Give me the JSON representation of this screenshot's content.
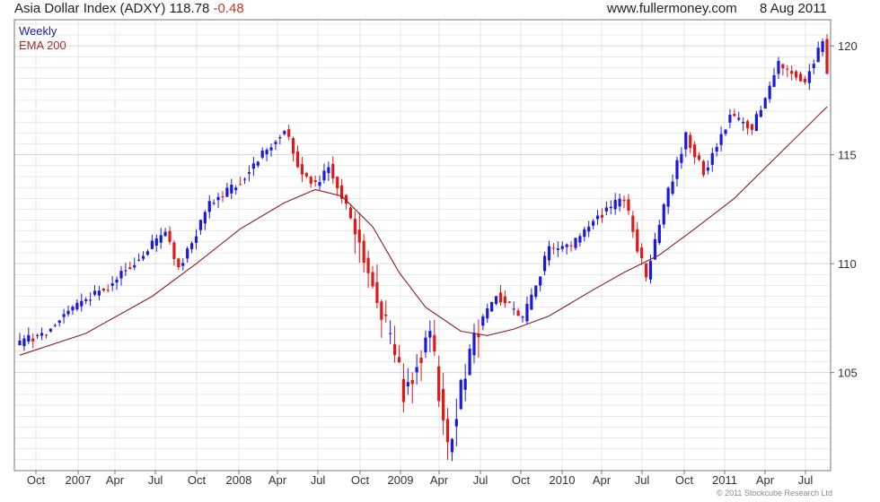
{
  "header": {
    "title_main": "Asia Dollar Index (ADXY) 118.78",
    "title_change": "-0.48",
    "site": "www.fullermoney.com",
    "date": "8 Aug 2011"
  },
  "legend": {
    "weekly": "Weekly",
    "ema": "EMA 200"
  },
  "copyright": "© 2011 Stockcube Research Ltd",
  "colors": {
    "up": "#1a1adc",
    "down": "#e01818",
    "ema": "#8b1f1f",
    "grid": "#d6d6d6",
    "frame": "#777777"
  },
  "chart_data": {
    "type": "candlestick",
    "interval": "weekly",
    "ylim": [
      100.5,
      121.2
    ],
    "y_ticks": [
      105,
      110,
      115,
      120
    ],
    "x_ticks": [
      "Oct",
      "2007",
      "Apr",
      "Jul",
      "Oct",
      "2008",
      "Apr",
      "Jul",
      "Oct",
      "2009",
      "Apr",
      "Jul",
      "Oct",
      "2010",
      "Apr",
      "Jul",
      "Oct",
      "2011",
      "Apr",
      "Jul"
    ],
    "grid": true,
    "legend_position": "top-left",
    "close_path": [
      [
        0,
        106.3
      ],
      [
        6,
        106.9
      ],
      [
        12,
        108.0
      ],
      [
        20,
        109.0
      ],
      [
        28,
        110.5
      ],
      [
        33,
        111.4
      ],
      [
        36,
        109.8
      ],
      [
        43,
        112.7
      ],
      [
        50,
        113.8
      ],
      [
        60,
        116.2
      ],
      [
        64,
        114.1
      ],
      [
        67,
        113.6
      ],
      [
        70,
        114.6
      ],
      [
        77,
        111.0
      ],
      [
        81,
        108.4
      ],
      [
        87,
        104.2
      ],
      [
        93,
        106.8
      ],
      [
        97,
        101.6
      ],
      [
        103,
        106.8
      ],
      [
        108,
        108.6
      ],
      [
        114,
        107.4
      ],
      [
        120,
        110.7
      ],
      [
        125,
        110.8
      ],
      [
        131,
        112.2
      ],
      [
        137,
        113.0
      ],
      [
        142,
        109.3
      ],
      [
        146,
        112.6
      ],
      [
        151,
        115.9
      ],
      [
        155,
        114.2
      ],
      [
        161,
        116.8
      ],
      [
        166,
        116.2
      ],
      [
        172,
        119.1
      ],
      [
        178,
        118.4
      ],
      [
        182,
        120.3
      ],
      [
        183,
        118.78
      ]
    ],
    "series": [
      {
        "name": "Weekly",
        "kind": "candles"
      },
      {
        "name": "EMA 200",
        "kind": "line",
        "values": [
          [
            0,
            105.8
          ],
          [
            15,
            106.8
          ],
          [
            30,
            108.5
          ],
          [
            40,
            110.0
          ],
          [
            50,
            111.6
          ],
          [
            60,
            112.8
          ],
          [
            67,
            113.4
          ],
          [
            73,
            113.1
          ],
          [
            80,
            111.7
          ],
          [
            86,
            109.6
          ],
          [
            92,
            108.0
          ],
          [
            100,
            106.9
          ],
          [
            106,
            106.7
          ],
          [
            112,
            107.0
          ],
          [
            120,
            107.6
          ],
          [
            130,
            108.8
          ],
          [
            137,
            109.6
          ],
          [
            145,
            110.4
          ],
          [
            153,
            111.6
          ],
          [
            162,
            113.0
          ],
          [
            170,
            114.6
          ],
          [
            177,
            116.0
          ],
          [
            183,
            117.2
          ]
        ]
      }
    ]
  }
}
